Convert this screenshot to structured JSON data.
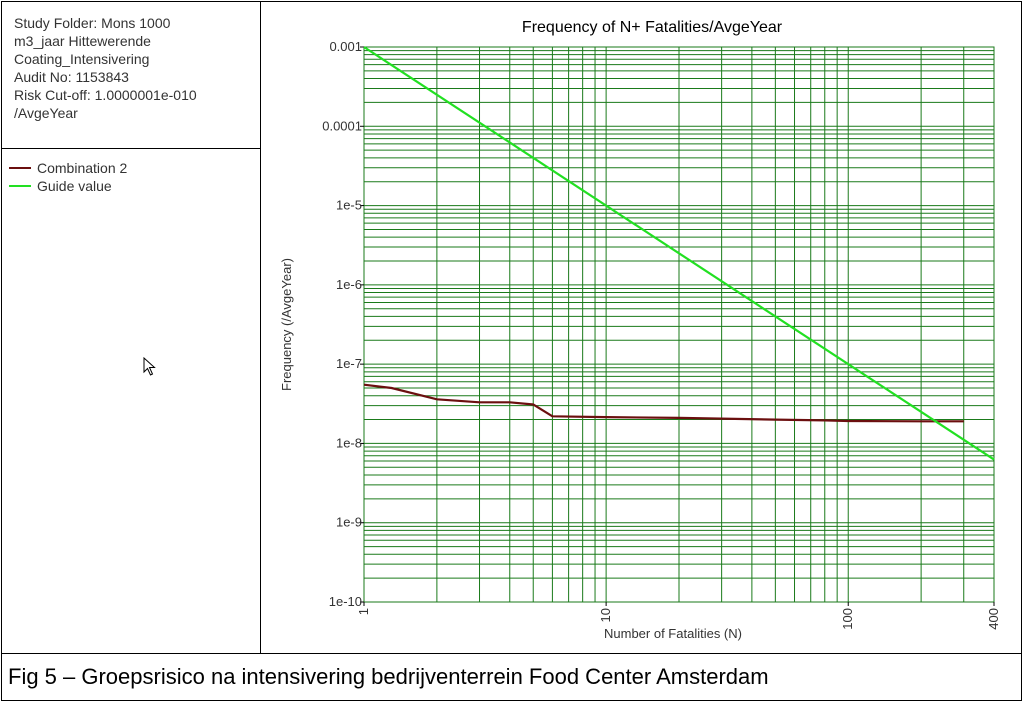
{
  "study_info": "Study Folder: Mons 1000\nm3_jaar Hittewerende\nCoating_Intensivering\nAudit No: 1153843\nRisk Cut-off: 1.0000001e-010\n/AvgeYear",
  "legend": [
    {
      "label": "Combination 2",
      "color": "#6b0f0f"
    },
    {
      "label": "Guide value",
      "color": "#22e022"
    }
  ],
  "caption": "Fig 5 – Groepsrisico na intensivering bedrijventerrein Food Center Amsterdam",
  "cursor_icon": "mouse-pointer-icon",
  "chart_data": {
    "type": "line",
    "title": "Frequency of N+ Fatalities/AvgeYear",
    "xlabel": "Number of Fatalities (N)",
    "ylabel": "Frequency (/AvgeYear)",
    "x_scale": "log",
    "y_scale": "log",
    "xlim": [
      1,
      400
    ],
    "ylim": [
      1e-10,
      0.001
    ],
    "x_ticks": [
      {
        "value": 1,
        "label": "1"
      },
      {
        "value": 10,
        "label": "10"
      },
      {
        "value": 100,
        "label": "100"
      },
      {
        "value": 400,
        "label": "400"
      }
    ],
    "y_ticks": [
      {
        "value": 0.001,
        "label": "0.001"
      },
      {
        "value": 0.0001,
        "label": "0.0001"
      },
      {
        "value": 1e-05,
        "label": "1e-5"
      },
      {
        "value": 1e-06,
        "label": "1e-6"
      },
      {
        "value": 1e-07,
        "label": "1e-7"
      },
      {
        "value": 1e-08,
        "label": "1e-8"
      },
      {
        "value": 1e-09,
        "label": "1e-9"
      },
      {
        "value": 1e-10,
        "label": "1e-10"
      }
    ],
    "grid": true,
    "grid_color": "#1a7a1a",
    "series": [
      {
        "name": "Combination 2",
        "color": "#6b0f0f",
        "x": [
          1,
          1.3,
          2,
          3,
          4,
          5,
          6,
          10,
          20,
          50,
          80,
          100,
          200,
          300
        ],
        "y": [
          5.5e-08,
          5e-08,
          3.6e-08,
          3.3e-08,
          3.3e-08,
          3.1e-08,
          2.2e-08,
          2.15e-08,
          2.1e-08,
          2e-08,
          1.95e-08,
          1.92e-08,
          1.9e-08,
          1.9e-08
        ]
      },
      {
        "name": "Guide value",
        "color": "#22e022",
        "x": [
          1,
          400
        ],
        "y": [
          0.001,
          6.25e-09
        ]
      }
    ]
  }
}
